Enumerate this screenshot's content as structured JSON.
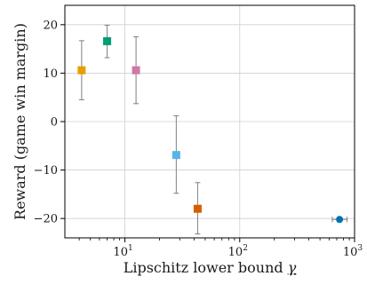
{
  "chart_data": {
    "type": "scatter",
    "xlabel": "Lipschitz lower bound",
    "xlabel_symbol": "γ",
    "ylabel": "Reward (game win margin)",
    "xscale": "log",
    "xlim": [
      3,
      1000
    ],
    "ylim": [
      -24,
      24
    ],
    "grid": true,
    "xticks": [
      {
        "value": 10,
        "base": "10",
        "exp": "1"
      },
      {
        "value": 100,
        "base": "10",
        "exp": "2"
      },
      {
        "value": 1000,
        "base": "10",
        "exp": "3"
      }
    ],
    "yticks": [
      {
        "value": 20,
        "label": "20"
      },
      {
        "value": 10,
        "label": "10"
      },
      {
        "value": 0,
        "label": "0"
      },
      {
        "value": -10,
        "label": "−10"
      },
      {
        "value": -20,
        "label": "−20"
      }
    ],
    "points": [
      {
        "x": 4.2,
        "y": 10.6,
        "y_low": 4.5,
        "y_high": 16.7,
        "marker": "square",
        "color": "#e69f00"
      },
      {
        "x": 7.0,
        "y": 16.6,
        "y_low": 13.2,
        "y_high": 19.9,
        "marker": "square",
        "color": "#009e73"
      },
      {
        "x": 12.5,
        "y": 10.6,
        "y_low": 3.7,
        "y_high": 17.5,
        "marker": "square",
        "color": "#cc79a7"
      },
      {
        "x": 28.0,
        "y": -6.9,
        "y_low": -14.8,
        "y_high": 1.2,
        "marker": "square",
        "color": "#56b4e9"
      },
      {
        "x": 43.0,
        "y": -18.0,
        "y_low": -23.2,
        "y_high": -12.6,
        "marker": "square",
        "color": "#d55e00"
      },
      {
        "x": 740,
        "y": -20.2,
        "y_low": -20.2,
        "y_high": -20.2,
        "x_low": 640,
        "x_high": 860,
        "marker": "circle",
        "color": "#0072b2"
      }
    ]
  }
}
